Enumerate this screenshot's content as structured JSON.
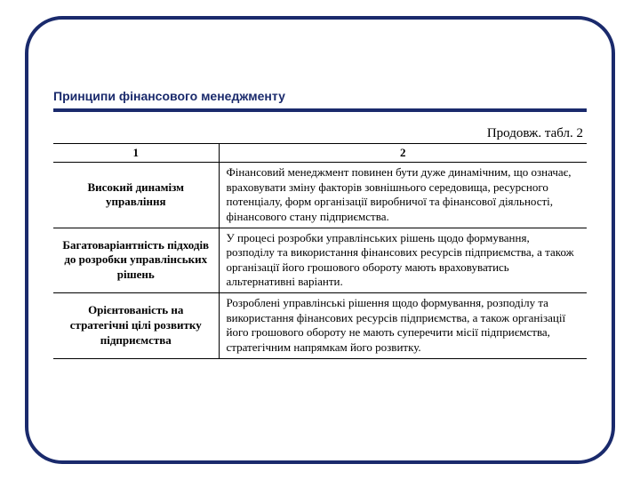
{
  "title": "Принципи фінансового менеджменту",
  "continuation": "Продовж. табл. 2",
  "table": {
    "headers": {
      "c1": "1",
      "c2": "2"
    },
    "rows": [
      {
        "principle": "Високий динамізм управління",
        "desc": "Фінансовий менеджмент повинен бути дуже динаміч­ним, що означає, враховувати зміну факторів зовніш­нього середовища, ресурсного потенціалу, форм ор­ганізації виробничої та фінансової діяльності, фінан­сового стану підприємства."
      },
      {
        "principle": "Багатоваріантність підходів до розробки управлінських рі­шень",
        "desc": "У процесі розробки управлінських рішень щодо фор­мування, розподілу та використання фінансових ре­сурсів підприємства, а також організації його грошо­вого обороту мають враховуватись альтернативні ва­ріанти."
      },
      {
        "principle": "Орієнтованість на стратегічні цілі роз­витку підприємства",
        "desc": "Розроблені управлінські рішення щодо формування, розподілу та використання фінансових ресурсів під­приємства, а також організації його грошового оборо­ту не мають суперечити місії підприємства, стратегіч­ним напрямкам його розвитку."
      }
    ]
  },
  "colors": {
    "accent": "#1a2a6c",
    "text": "#000000",
    "bg": "#ffffff"
  },
  "typography": {
    "title_fontsize": 14,
    "body_fontsize": 13,
    "cont_fontsize": 15
  }
}
